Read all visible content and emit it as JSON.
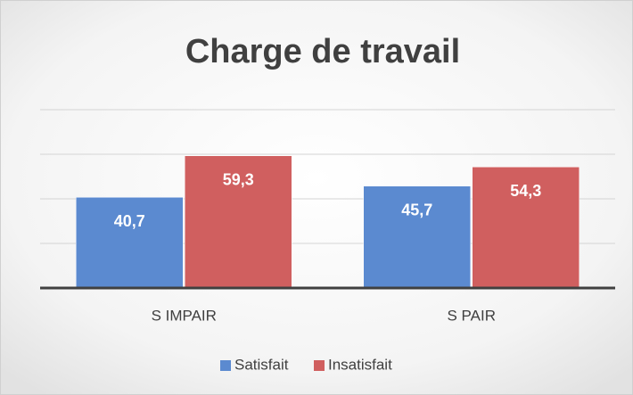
{
  "chart_data": {
    "type": "bar",
    "title": "Charge de travail",
    "categories": [
      "S IMPAIR",
      "S PAIR"
    ],
    "series": [
      {
        "name": "Satisfait",
        "color": "#5b8ad0",
        "values": [
          40.7,
          45.7
        ],
        "value_labels": [
          "40,7",
          "45,7"
        ]
      },
      {
        "name": "Insatisfait",
        "color": "#d05f5f",
        "values": [
          59.3,
          54.3
        ],
        "value_labels": [
          "59,3",
          "54,3"
        ]
      }
    ],
    "ylim": [
      0,
      80
    ],
    "yticks": [
      0,
      20,
      40,
      60,
      80
    ],
    "grid": true,
    "legend": "bottom"
  }
}
